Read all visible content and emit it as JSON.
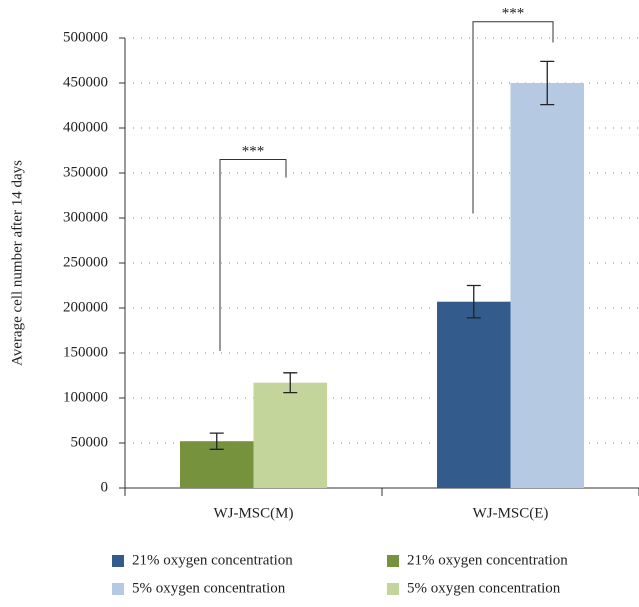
{
  "chart_data": {
    "type": "bar",
    "ylabel": "Average cell number after 14 days",
    "categories": [
      "WJ-MSC(M)",
      "WJ-MSC(E)"
    ],
    "series": [
      {
        "name": "21% oxygen concentration",
        "color": "#335c8d",
        "values": [
          null,
          207000
        ],
        "errors": [
          null,
          18000
        ]
      },
      {
        "name": "5% oxygen concentration",
        "color": "#b6c9e2",
        "values": [
          null,
          450000
        ],
        "errors": [
          null,
          24000
        ]
      },
      {
        "name": "21% oxygen concentration",
        "color": "#76923c",
        "values": [
          52000,
          null
        ],
        "errors": [
          9000,
          null
        ]
      },
      {
        "name": "5% oxygen concentration",
        "color": "#c3d59b",
        "values": [
          117000,
          null
        ],
        "errors": [
          11000,
          null
        ]
      }
    ],
    "annotations": [
      "***",
      "***"
    ],
    "ylim": [
      0,
      500000
    ],
    "yticks": [
      0,
      50000,
      100000,
      150000,
      200000,
      250000,
      300000,
      350000,
      400000,
      450000,
      500000
    ],
    "grid": true
  }
}
